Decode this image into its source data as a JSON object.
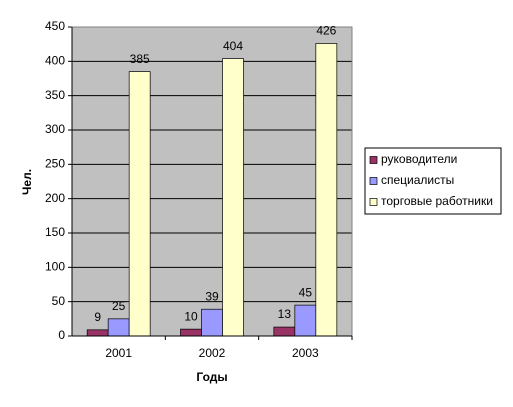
{
  "chart_data": {
    "type": "bar",
    "x_label": "Годы",
    "y_label": "Чел.",
    "categories": [
      "2001",
      "2002",
      "2003"
    ],
    "series": [
      {
        "name": "руководители",
        "color": "#993366",
        "values": [
          9,
          10,
          13
        ]
      },
      {
        "name": "специалисты",
        "color": "#9999ff",
        "values": [
          25,
          39,
          45
        ]
      },
      {
        "name": "торговые работники",
        "color": "#ffffcc",
        "values": [
          385,
          404,
          426
        ]
      }
    ],
    "ylim": [
      0,
      450
    ],
    "yticks": [
      0,
      50,
      100,
      150,
      200,
      250,
      300,
      350,
      400,
      450
    ],
    "grid": true,
    "legend": "right"
  }
}
